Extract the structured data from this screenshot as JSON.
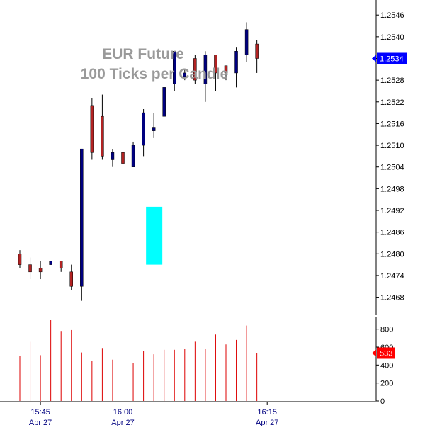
{
  "chart_data": {
    "type": "candlestick",
    "title_line1": "EUR Future",
    "title_line2": "100 Ticks per Candle",
    "price_axis": {
      "ticks": [
        "1.2546",
        "1.2540",
        "1.2534",
        "1.2528",
        "1.2522",
        "1.2516",
        "1.2510",
        "1.2504",
        "1.2498",
        "1.2492",
        "1.2486",
        "1.2480",
        "1.2474",
        "1.2468"
      ],
      "range": [
        1.2464,
        1.2548
      ]
    },
    "volume_axis": {
      "ticks": [
        "800",
        "600",
        "400",
        "200",
        "0"
      ],
      "range": [
        0,
        900
      ]
    },
    "time_axis": [
      {
        "time": "15:45",
        "date": "Apr 27",
        "at_candle": 2
      },
      {
        "time": "16:00",
        "date": "Apr 27",
        "at_candle": 10
      },
      {
        "time": "16:15",
        "date": "Apr 27",
        "at_candle": 24
      }
    ],
    "current_price": {
      "value": 1.2534,
      "label": "1.2534",
      "color": "#0000ff"
    },
    "current_volume": {
      "value": 533,
      "label": "533",
      "color": "#ff0000"
    },
    "colors": {
      "up_candle": "#000080",
      "down_candle": "#b22222",
      "volume": "#dd0000",
      "highlight": "#00ffff",
      "title": "#9a9a9a"
    },
    "highlight_zone": {
      "candle": 13,
      "top": 1.2493,
      "bottom": 1.2477
    },
    "candles": [
      {
        "o": 1.248,
        "h": 1.2481,
        "l": 1.2476,
        "c": 1.2477,
        "v": 500
      },
      {
        "o": 1.2477,
        "h": 1.2479,
        "l": 1.2473,
        "c": 1.2475,
        "v": 660
      },
      {
        "o": 1.2476,
        "h": 1.2478,
        "l": 1.2473,
        "c": 1.2475,
        "v": 510
      },
      {
        "o": 1.2477,
        "h": 1.2478,
        "l": 1.2477,
        "c": 1.2478,
        "v": 900
      },
      {
        "o": 1.2478,
        "h": 1.2478,
        "l": 1.2475,
        "c": 1.2476,
        "v": 780
      },
      {
        "o": 1.2475,
        "h": 1.2477,
        "l": 1.247,
        "c": 1.2471,
        "v": 790
      },
      {
        "o": 1.2471,
        "h": 1.2509,
        "l": 1.2467,
        "c": 1.2509,
        "v": 540
      },
      {
        "o": 1.2521,
        "h": 1.2523,
        "l": 1.2506,
        "c": 1.2508,
        "v": 450
      },
      {
        "o": 1.2518,
        "h": 1.2524,
        "l": 1.2506,
        "c": 1.2507,
        "v": 590
      },
      {
        "o": 1.2506,
        "h": 1.2509,
        "l": 1.2504,
        "c": 1.2508,
        "v": 460
      },
      {
        "o": 1.2508,
        "h": 1.2513,
        "l": 1.2501,
        "c": 1.2505,
        "v": 490
      },
      {
        "o": 1.2504,
        "h": 1.2511,
        "l": 1.2504,
        "c": 1.251,
        "v": 420
      },
      {
        "o": 1.251,
        "h": 1.252,
        "l": 1.2507,
        "c": 1.2519,
        "v": 560
      },
      {
        "o": 1.2514,
        "h": 1.2519,
        "l": 1.2512,
        "c": 1.2515,
        "v": 520
      },
      {
        "o": 1.2518,
        "h": 1.2526,
        "l": 1.2518,
        "c": 1.2526,
        "v": 570
      },
      {
        "o": 1.2527,
        "h": 1.2536,
        "l": 1.2525,
        "c": 1.2536,
        "v": 570
      },
      {
        "o": 1.2529,
        "h": 1.2531,
        "l": 1.2528,
        "c": 1.253,
        "v": 580
      },
      {
        "o": 1.2534,
        "h": 1.2535,
        "l": 1.2527,
        "c": 1.2528,
        "v": 660
      },
      {
        "o": 1.2527,
        "h": 1.2536,
        "l": 1.2522,
        "c": 1.2535,
        "v": 580
      },
      {
        "o": 1.2535,
        "h": 1.2535,
        "l": 1.2525,
        "c": 1.253,
        "v": 740
      },
      {
        "o": 1.2532,
        "h": 1.2532,
        "l": 1.2528,
        "c": 1.253,
        "v": 630
      },
      {
        "o": 1.253,
        "h": 1.2537,
        "l": 1.2526,
        "c": 1.2536,
        "v": 680
      },
      {
        "o": 1.2535,
        "h": 1.2544,
        "l": 1.2533,
        "c": 1.2542,
        "v": 840
      },
      {
        "o": 1.2538,
        "h": 1.2539,
        "l": 1.253,
        "c": 1.2534,
        "v": 533
      }
    ]
  }
}
